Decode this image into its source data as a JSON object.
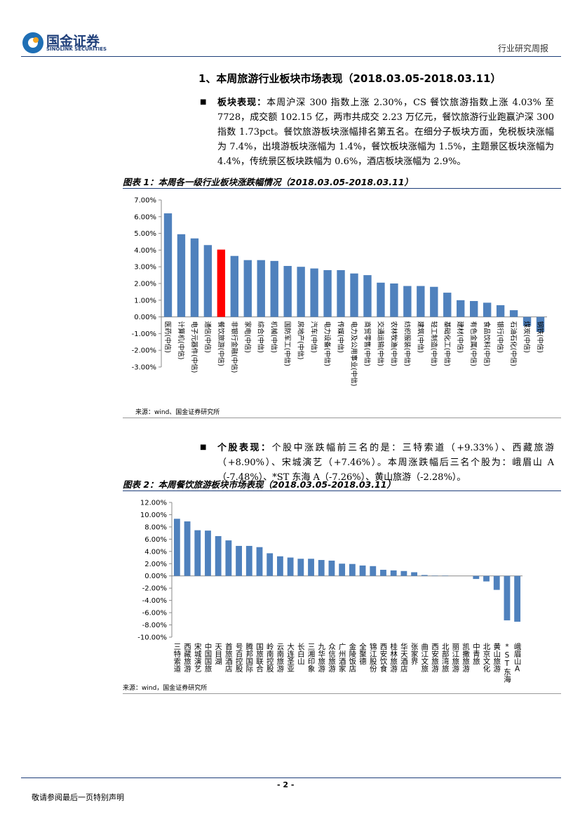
{
  "header": {
    "logo_cn": "国金证券",
    "logo_en": "SINOLINK SECURITIES",
    "report_type": "行业研究周报"
  },
  "section_title": "1、本周旅游行业板块市场表现（2018.03.05-2018.03.11）",
  "paragraphs": [
    {
      "label": "板块表现：",
      "text": "本周沪深 300 指数上涨 2.30%，CS 餐饮旅游指数上涨 4.03% 至 7728，成交额 102.15 亿，两市共成交 2.23 万亿元，餐饮旅游行业跑赢沪深 300 指数 1.73pct。餐饮旅游板块涨幅排名第五名。在细分子板块方面，免税板块涨幅为 7.4%，出境游板块涨幅为 1.4%，餐饮板块涨幅为 1.5%，主题景区板块涨幅为 4.4%，传统景区板块跌幅为 0.6%，酒店板块涨幅为 2.9%。"
    },
    {
      "label": "个股表现：",
      "text": "个股中涨跌幅前三名的是：三特索道（+9.33%）、西藏旅游（+8.90%）、宋城演艺（+7.46%）。本周涨跌幅后三名个股为：峨眉山 A（-7.48%）、*ST 东海 A（-7.26%）、黄山旅游（-2.28%）。"
    }
  ],
  "chart_data": [
    {
      "type": "bar",
      "title": "图表 1：本周各一级行业板块涨跌幅情况（2018.03.05-2018.03.11）",
      "source": "来源：wind、国金证券研究所",
      "categories": [
        "医药(中信)",
        "计算机(中信)",
        "电子元器件(中信)",
        "通信(中信)",
        "餐饮旅游(中信)",
        "非银行金融(中信)",
        "家电(中信)",
        "综合(中信)",
        "机械(中信)",
        "国防军工(中信)",
        "房地产(中信)",
        "汽车(中信)",
        "电力设备(中信)",
        "传媒(中信)",
        "电力及公用事业(中信)",
        "商贸零售(中信)",
        "交通运输(中信)",
        "农林牧渔(中信)",
        "纺织服装(中信)",
        "建筑(中信)",
        "轻工制造(中信)",
        "基础化工(中信)",
        "建材(中信)",
        "有色金属(中信)",
        "食品饮料(中信)",
        "银行(中信)",
        "石油石化(中信)",
        "煤炭(中信)",
        "钢铁(中信)"
      ],
      "values": [
        6.2,
        4.95,
        4.7,
        4.3,
        4.03,
        3.65,
        3.4,
        3.4,
        3.35,
        3.05,
        3.0,
        2.9,
        2.8,
        2.8,
        2.6,
        2.5,
        2.05,
        2.0,
        1.85,
        1.85,
        1.8,
        1.45,
        1.0,
        0.95,
        0.85,
        0.7,
        0.4,
        -0.55,
        -0.9
      ],
      "colors": [
        "#4f81bd",
        "#4f81bd",
        "#4f81bd",
        "#4f81bd",
        "#ff0000",
        "#4f81bd",
        "#4f81bd",
        "#4f81bd",
        "#4f81bd",
        "#4f81bd",
        "#4f81bd",
        "#4f81bd",
        "#4f81bd",
        "#4f81bd",
        "#4f81bd",
        "#4f81bd",
        "#4f81bd",
        "#4f81bd",
        "#4f81bd",
        "#4f81bd",
        "#4f81bd",
        "#4f81bd",
        "#4f81bd",
        "#4f81bd",
        "#4f81bd",
        "#4f81bd",
        "#4f81bd",
        "#4f81bd",
        "#4f81bd"
      ],
      "label_orientation": "rotated",
      "ylim": [
        -3,
        7
      ],
      "yticks": [
        {
          "value": -3,
          "label": "-3.00%"
        },
        {
          "value": -2,
          "label": "-2.00%"
        },
        {
          "value": -1,
          "label": "-1.00%"
        },
        {
          "value": 0,
          "label": "0.00%"
        },
        {
          "value": 1,
          "label": "1.00%"
        },
        {
          "value": 2,
          "label": "2.00%"
        },
        {
          "value": 3,
          "label": "3.00%"
        },
        {
          "value": 4,
          "label": "4.00%"
        },
        {
          "value": 5,
          "label": "5.00%"
        },
        {
          "value": 6,
          "label": "6.00%"
        },
        {
          "value": 7,
          "label": "7.00%"
        }
      ]
    },
    {
      "type": "bar",
      "title": "图表 2：本周餐饮旅游板块市场表现（2018.03.05-2018.03.11）",
      "source": "来源：wind，国金证券研究所",
      "categories": [
        "三特索道",
        "西藏旅游",
        "宋城演艺",
        "中国国旅",
        "天目湖",
        "首旅酒店",
        "号百控股",
        "腾邦国际",
        "国旅联合",
        "岭南控股",
        "云南旅游",
        "大连圣亚",
        "长白山",
        "三湘印象",
        "九华旅游",
        "众信旅游",
        "广州酒家",
        "金陵饭店",
        "全聚德",
        "锦江股份",
        "西安饮食",
        "桂林旅游",
        "华天酒店",
        "张家界",
        "曲江文旅",
        "西安旅游",
        "北部湾旅",
        "丽江旅游",
        "凯撒旅游",
        "中青旅",
        "北京文化",
        "黄山旅游",
        "*ST东海A",
        "峨眉山A"
      ],
      "values": [
        9.33,
        8.9,
        7.46,
        7.4,
        6.5,
        5.8,
        4.9,
        4.9,
        4.7,
        3.7,
        3.2,
        3.0,
        2.8,
        2.8,
        2.6,
        2.5,
        2.0,
        1.95,
        1.7,
        1.6,
        1.0,
        0.9,
        0.8,
        0.6,
        0.15,
        0.05,
        0.05,
        0,
        0,
        -0.5,
        -0.9,
        -2.28,
        -7.26,
        -7.48
      ],
      "color": "#4f81bd",
      "label_orientation": "upright",
      "ylim": [
        -10,
        12
      ],
      "yticks": [
        {
          "value": -10,
          "label": "-10.00%"
        },
        {
          "value": -8,
          "label": "-8.00%"
        },
        {
          "value": -6,
          "label": "-6.00%"
        },
        {
          "value": -4,
          "label": "-4.00%"
        },
        {
          "value": -2,
          "label": "-2.00%"
        },
        {
          "value": 0,
          "label": "0.00%"
        },
        {
          "value": 2,
          "label": "2.00%"
        },
        {
          "value": 4,
          "label": "4.00%"
        },
        {
          "value": 6,
          "label": "6.00%"
        },
        {
          "value": 8,
          "label": "8.00%"
        },
        {
          "value": 10,
          "label": "10.00%"
        },
        {
          "value": 12,
          "label": "12.00%"
        }
      ]
    }
  ],
  "footer": {
    "page": "- 2 -",
    "disclaimer": "敬请参阅最后一页特别声明"
  }
}
